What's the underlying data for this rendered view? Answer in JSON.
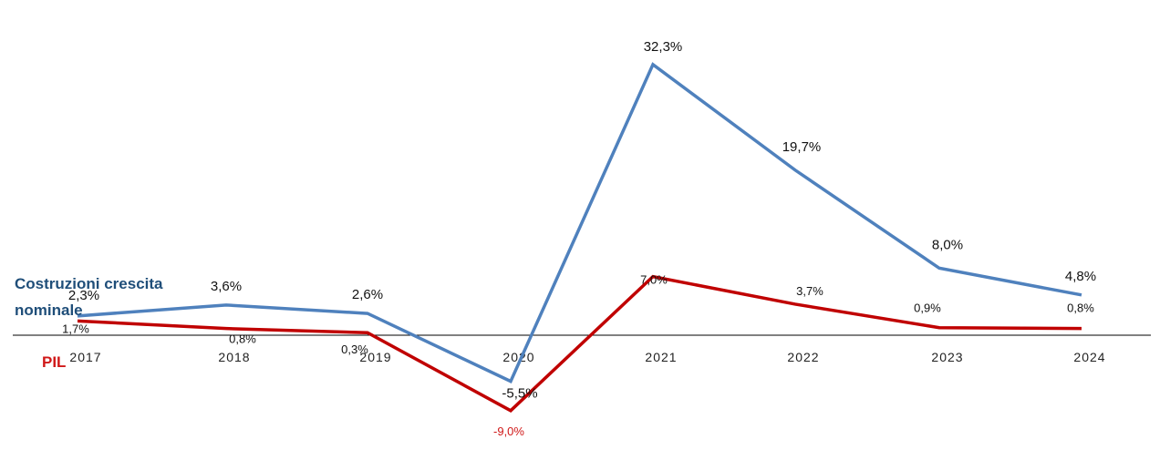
{
  "chart_data": {
    "type": "line",
    "x": [
      "2017",
      "2018",
      "2019",
      "2020",
      "2021",
      "2022",
      "2023",
      "2024"
    ],
    "series": [
      {
        "name": "Costruzioni crescita nominale",
        "values": [
          2.3,
          3.6,
          2.6,
          -5.5,
          32.3,
          19.7,
          8.0,
          4.8
        ],
        "labels": [
          "2,3%",
          "3,6%",
          "2,6%",
          "-5,5%",
          "32,3%",
          "19,7%",
          "8,0%",
          "4,8%"
        ],
        "color": "#4f81bd"
      },
      {
        "name": "PIL",
        "values": [
          1.7,
          0.8,
          0.3,
          -9.0,
          7.0,
          3.7,
          0.9,
          0.8
        ],
        "labels": [
          "1,7%",
          "0,8%",
          "0,3%",
          "-9,0%",
          "7,0%",
          "3,7%",
          "0,9%",
          "0,8%"
        ],
        "color": "#c00000"
      }
    ],
    "ylim": [
      -12,
      34
    ],
    "grid": false,
    "legend": "left, inline labels"
  }
}
